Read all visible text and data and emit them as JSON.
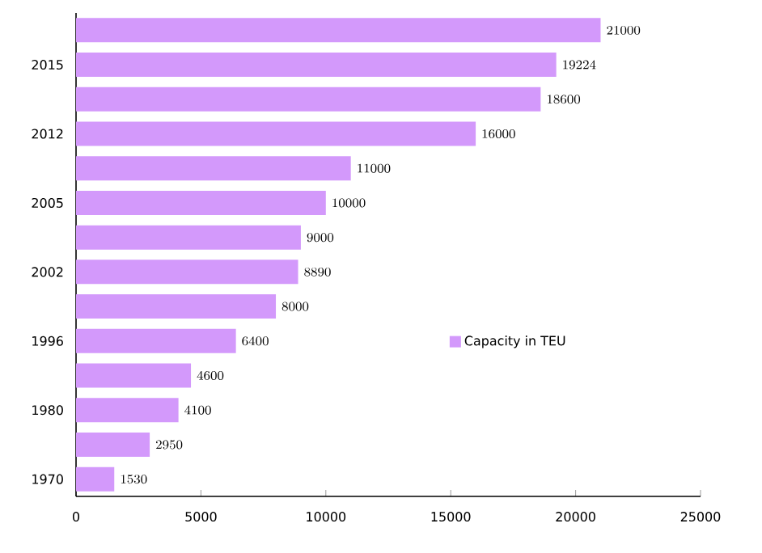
{
  "chart_data": {
    "type": "bar",
    "orientation": "horizontal",
    "categories": [
      null,
      "2015",
      null,
      "2012",
      null,
      "2005",
      null,
      "2002",
      null,
      "1996",
      null,
      "1980",
      null,
      "1970"
    ],
    "series": [
      {
        "name": "Capacity in TEU",
        "color": "#d399fb",
        "values": [
          21000,
          19224,
          18600,
          16000,
          11000,
          10000,
          9000,
          8890,
          8000,
          6400,
          4600,
          4100,
          2950,
          1530
        ]
      }
    ],
    "xlim": [
      0,
      25000
    ],
    "xticks": [
      0,
      5000,
      10000,
      15000,
      20000,
      25000
    ],
    "data_labels": true,
    "legend": "right",
    "grid": false
  }
}
